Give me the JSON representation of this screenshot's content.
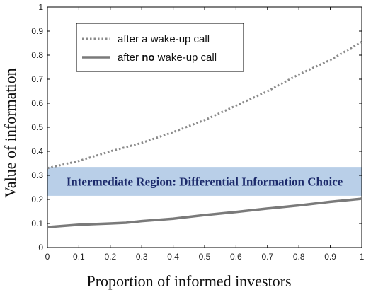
{
  "chart_data": {
    "type": "line",
    "title": "",
    "xlabel": "Proportion of informed investors",
    "ylabel": "Value of information",
    "xlim": [
      0,
      1
    ],
    "ylim": [
      0,
      1
    ],
    "x_ticks": [
      "0",
      "0.1",
      "0.2",
      "0.3",
      "0.4",
      "0.5",
      "0.6",
      "0.7",
      "0.8",
      "0.9",
      "1"
    ],
    "y_ticks": [
      "0",
      "0.1",
      "0.2",
      "0.3",
      "0.4",
      "0.5",
      "0.6",
      "0.7",
      "0.8",
      "0.9",
      "1"
    ],
    "grid": false,
    "legend_position": "top-left",
    "series": [
      {
        "name": "after a wake-up call",
        "name_parts": [
          "after a wake-up call"
        ],
        "style": "dotted",
        "color": "#8a8a8a",
        "x": [
          0,
          0.1,
          0.2,
          0.3,
          0.4,
          0.5,
          0.6,
          0.7,
          0.8,
          0.9,
          1.0
        ],
        "y": [
          0.33,
          0.36,
          0.4,
          0.435,
          0.48,
          0.53,
          0.59,
          0.65,
          0.72,
          0.78,
          0.855
        ]
      },
      {
        "name": "after no wake-up call",
        "name_parts": [
          "after ",
          "no",
          " wake-up call"
        ],
        "style": "solid",
        "color": "#7a7a7a",
        "x": [
          0,
          0.1,
          0.2,
          0.25,
          0.3,
          0.4,
          0.5,
          0.6,
          0.7,
          0.8,
          0.9,
          1.0
        ],
        "y": [
          0.085,
          0.095,
          0.1,
          0.103,
          0.11,
          0.12,
          0.135,
          0.148,
          0.162,
          0.175,
          0.19,
          0.203
        ]
      }
    ],
    "annotations": [
      {
        "text": "Intermediate Region: Differential Information Choice",
        "y_range": [
          0.215,
          0.335
        ],
        "fill": "#b9cfe8",
        "text_color": "#1c2a6b"
      }
    ]
  }
}
